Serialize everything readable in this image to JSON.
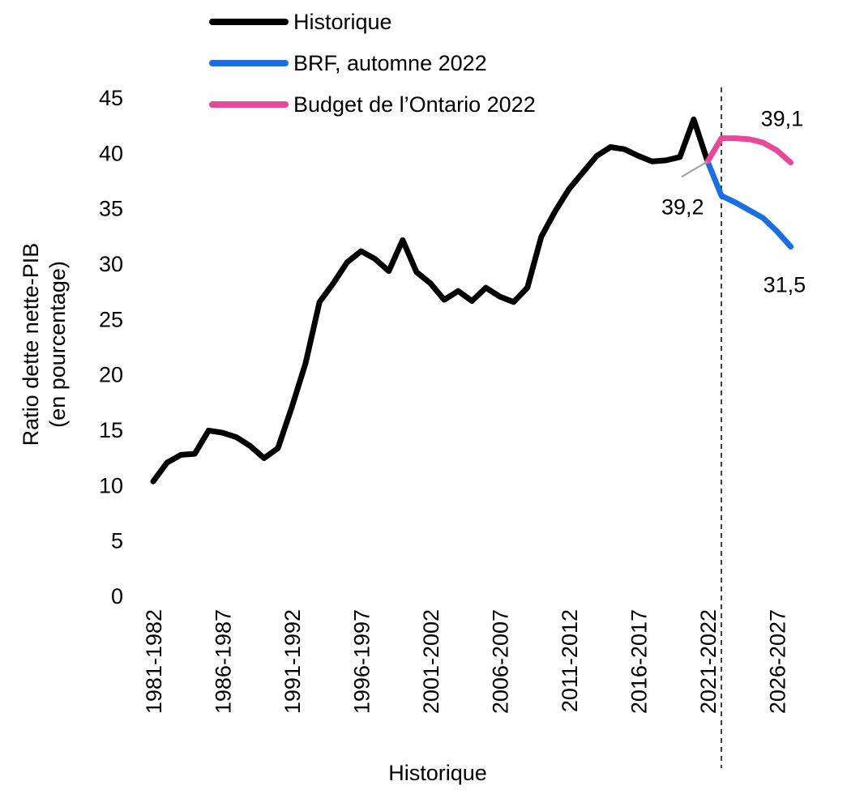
{
  "chart_data": {
    "type": "line",
    "title": "",
    "xlabel": "Historique",
    "ylabel_lines": [
      "Ratio dette nette-PIB",
      "(en pourcentage)"
    ],
    "ylim": [
      0,
      45
    ],
    "yticks": [
      0,
      5,
      10,
      15,
      20,
      25,
      30,
      35,
      40,
      45
    ],
    "xtick_labels": [
      "1981-1982",
      "1986-1987",
      "1991-1992",
      "1996-1997",
      "2001-2002",
      "2006-2007",
      "2011-2012",
      "2016-2017",
      "2021-2022",
      "2026-2027"
    ],
    "legend_position": "top",
    "grid": false,
    "series": [
      {
        "name": "Historique",
        "color": "#000000",
        "x": [
          "1981-1982",
          "1982-1983",
          "1983-1984",
          "1984-1985",
          "1985-1986",
          "1986-1987",
          "1987-1988",
          "1988-1989",
          "1989-1990",
          "1990-1991",
          "1991-1992",
          "1992-1993",
          "1993-1994",
          "1994-1995",
          "1995-1996",
          "1996-1997",
          "1997-1998",
          "1998-1999",
          "1999-2000",
          "2000-2001",
          "2001-2002",
          "2002-2003",
          "2003-2004",
          "2004-2005",
          "2005-2006",
          "2006-2007",
          "2007-2008",
          "2008-2009",
          "2009-2010",
          "2010-2011",
          "2011-2012",
          "2012-2013",
          "2013-2014",
          "2014-2015",
          "2015-2016",
          "2016-2017",
          "2017-2018",
          "2018-2019",
          "2019-2020",
          "2020-2021",
          "2021-2022"
        ],
        "values": [
          10.3,
          12.0,
          12.7,
          12.8,
          14.9,
          14.7,
          14.3,
          13.5,
          12.4,
          13.3,
          17.0,
          21.0,
          26.5,
          28.2,
          30.1,
          31.1,
          30.4,
          29.3,
          32.1,
          29.2,
          28.2,
          26.7,
          27.5,
          26.6,
          27.8,
          27.0,
          26.5,
          27.8,
          32.4,
          34.7,
          36.7,
          38.2,
          39.7,
          40.5,
          40.3,
          39.7,
          39.2,
          39.3,
          39.6,
          43.0,
          39.2
        ]
      },
      {
        "name": "BRF, automne 2022",
        "color": "#1a6fe0",
        "x": [
          "2021-2022",
          "2022-2023",
          "2023-2024",
          "2024-2025",
          "2025-2026",
          "2026-2027",
          "2027-2028"
        ],
        "values": [
          39.2,
          36.1,
          35.5,
          34.8,
          34.1,
          32.9,
          31.5
        ]
      },
      {
        "name": "Budget de l’Ontario 2022",
        "color": "#e8489a",
        "x": [
          "2021-2022",
          "2022-2023",
          "2023-2024",
          "2024-2025",
          "2025-2026",
          "2026-2027",
          "2027-2028"
        ],
        "values": [
          39.2,
          41.3,
          41.3,
          41.2,
          40.9,
          40.2,
          39.1
        ]
      }
    ],
    "annotations": [
      {
        "text": "39,2",
        "x": "2021-2022",
        "y": 39.2
      },
      {
        "text": "39,1",
        "x": "2027-2028",
        "y": 39.1
      },
      {
        "text": "31,5",
        "x": "2027-2028",
        "y": 31.5
      }
    ],
    "divider_at": "2021-2022"
  }
}
